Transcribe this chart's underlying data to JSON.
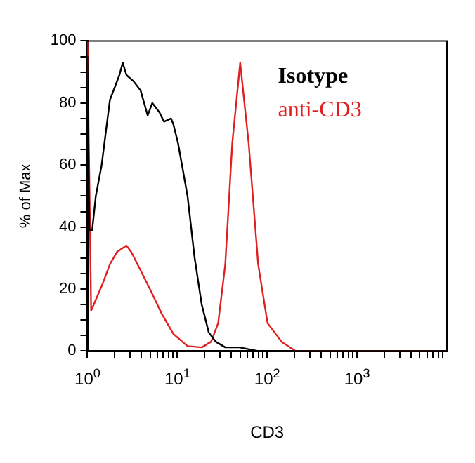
{
  "chart_data": {
    "type": "line",
    "xlabel": "CD3",
    "ylabel": "% of Max",
    "log": "x",
    "xlim": [
      1,
      10000
    ],
    "ylim": [
      0,
      100
    ],
    "xticks": [
      {
        "value": 1,
        "label": "10$^{0}$"
      },
      {
        "value": 2,
        "label": null
      },
      {
        "value": 3,
        "label": null
      },
      {
        "value": 4,
        "label": null
      },
      {
        "value": 5,
        "label": null
      },
      {
        "value": 6,
        "label": null
      },
      {
        "value": 7,
        "label": null
      },
      {
        "value": 8,
        "label": null
      },
      {
        "value": 9,
        "label": null
      },
      {
        "value": 10,
        "label": "10$^{1}$"
      },
      {
        "value": 20,
        "label": null
      },
      {
        "value": 30,
        "label": null
      },
      {
        "value": 40,
        "label": null
      },
      {
        "value": 50,
        "label": null
      },
      {
        "value": 60,
        "label": null
      },
      {
        "value": 70,
        "label": null
      },
      {
        "value": 80,
        "label": null
      },
      {
        "value": 90,
        "label": null
      },
      {
        "value": 100,
        "label": "10$^{2}$"
      },
      {
        "value": 200,
        "label": null
      },
      {
        "value": 300,
        "label": null
      },
      {
        "value": 400,
        "label": null
      },
      {
        "value": 500,
        "label": null
      },
      {
        "value": 600,
        "label": null
      },
      {
        "value": 700,
        "label": null
      },
      {
        "value": 800,
        "label": null
      },
      {
        "value": 900,
        "label": null
      },
      {
        "value": 1000,
        "label": "10$^{3}$"
      },
      {
        "value": 2000,
        "label": null
      },
      {
        "value": 3000,
        "label": null
      },
      {
        "value": 4000,
        "label": null
      },
      {
        "value": 5000,
        "label": null
      },
      {
        "value": 6000,
        "label": null
      },
      {
        "value": 7000,
        "label": null
      },
      {
        "value": 8000,
        "label": null
      },
      {
        "value": 9000,
        "label": null
      }
    ],
    "yticks": [
      0,
      {
        "value": 5,
        "label": null
      },
      {
        "value": 10,
        "label": null
      },
      {
        "value": 15,
        "label": null
      },
      20,
      {
        "value": 25,
        "label": null
      },
      {
        "value": 30,
        "label": null
      },
      {
        "value": 35,
        "label": null
      },
      40,
      {
        "value": 45,
        "label": null
      },
      {
        "value": 50,
        "label": null
      },
      {
        "value": 55,
        "label": null
      },
      60,
      {
        "value": 65,
        "label": null
      },
      {
        "value": 70,
        "label": null
      },
      {
        "value": 75,
        "label": null
      },
      80,
      {
        "value": 85,
        "label": null
      },
      {
        "value": 90,
        "label": null
      },
      {
        "value": 95,
        "label": null
      },
      100
    ],
    "grid": false,
    "legend": "top right",
    "marker": "none",
    "line_style": "solid",
    "series": [
      {
        "name": "Isotype",
        "color": "#000000",
        "x": [
          1,
          1,
          1.05,
          1.13,
          1.24,
          1.44,
          1.78,
          2.01,
          2.27,
          2.47,
          2.72,
          3.26,
          3.91,
          4.68,
          5.27,
          6.32,
          7.11,
          8.53,
          9.07,
          10.2,
          13,
          15.6,
          18.7,
          22.4,
          26.8,
          34.2,
          49.1,
          79.4,
          10000
        ],
        "values": [
          0,
          95,
          39,
          39,
          50,
          60,
          81,
          85,
          89,
          93,
          89,
          87,
          84,
          76,
          80,
          77,
          74,
          75,
          73,
          67,
          50,
          30,
          15,
          6,
          3,
          1.2,
          1.2,
          0,
          0
        ]
      },
      {
        "name": "anti-CD3",
        "color": "#e02020",
        "x": [
          1,
          1.1,
          1.49,
          1.78,
          2.14,
          2.72,
          3.07,
          3.91,
          4.96,
          6.72,
          9.07,
          13,
          18.7,
          23.8,
          28.5,
          34.2,
          40.9,
          50.1,
          62.3,
          79.4,
          101,
          145,
          208,
          10000
        ],
        "values": [
          100,
          13,
          22,
          28,
          32,
          34,
          32,
          26,
          20,
          12,
          5.5,
          1.6,
          1.2,
          3,
          9,
          28,
          67,
          93,
          67,
          28,
          9,
          3,
          0,
          0
        ]
      }
    ]
  }
}
